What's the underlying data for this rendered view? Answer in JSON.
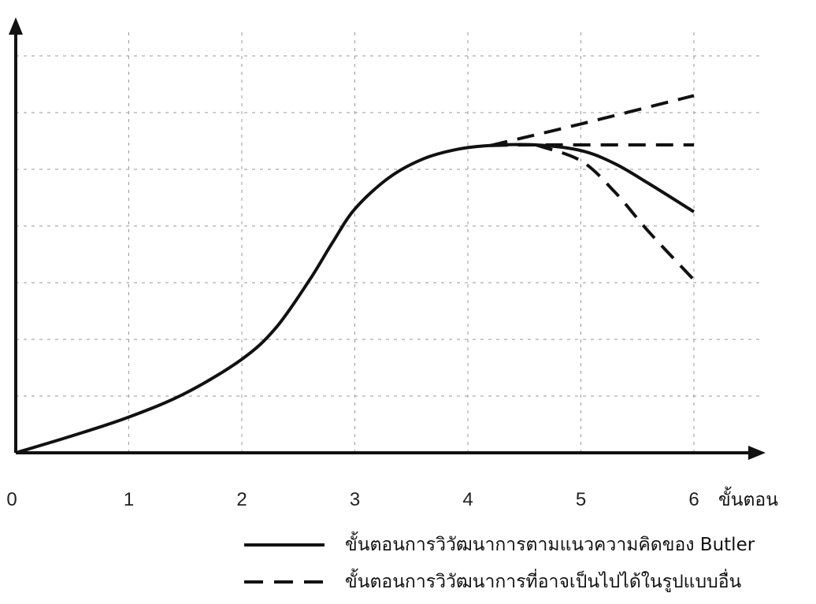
{
  "chart_data": {
    "type": "line",
    "x_unit_label": "ขั้นตอน",
    "x_ticks": [
      "0",
      "1",
      "2",
      "3",
      "4",
      "5",
      "6"
    ],
    "xlim": [
      0,
      6.6
    ],
    "ylim": [
      0,
      7.5
    ],
    "grid": true,
    "legend_position": "bottom-right",
    "series": [
      {
        "name": "ขั้นตอนการวิวัฒนาการตามแนวความคิดของ Butler",
        "style": "solid",
        "points": [
          [
            0,
            0
          ],
          [
            0.5,
            0.3
          ],
          [
            1,
            0.63
          ],
          [
            1.5,
            1.05
          ],
          [
            2,
            1.65
          ],
          [
            2.3,
            2.2
          ],
          [
            2.6,
            3.05
          ],
          [
            2.8,
            3.7
          ],
          [
            3,
            4.3
          ],
          [
            3.3,
            4.85
          ],
          [
            3.6,
            5.18
          ],
          [
            3.9,
            5.35
          ],
          [
            4.2,
            5.42
          ],
          [
            4.6,
            5.43
          ],
          [
            5,
            5.33
          ],
          [
            5.3,
            5.1
          ],
          [
            5.6,
            4.75
          ],
          [
            6,
            4.25
          ]
        ]
      },
      {
        "name": "ขั้นตอนการวิวัฒนาการที่อาจเป็นไปได้ในรูปแบบอื่น",
        "style": "dashed",
        "points": [
          [
            4.2,
            5.42
          ],
          [
            5,
            5.8
          ],
          [
            6,
            6.3
          ]
        ]
      },
      {
        "name": "ขั้นตอนการวิวัฒนาการที่อาจเป็นไปได้ในรูปแบบอื่น",
        "style": "dashed",
        "points": [
          [
            4.2,
            5.42
          ],
          [
            4.6,
            5.43
          ],
          [
            6,
            5.43
          ]
        ]
      },
      {
        "name": "ขั้นตอนการวิวัฒนาการที่อาจเป็นไปได้ในรูปแบบอื่น",
        "style": "dashed",
        "points": [
          [
            4.6,
            5.43
          ],
          [
            5,
            5.15
          ],
          [
            5.3,
            4.6
          ],
          [
            5.6,
            3.9
          ],
          [
            6,
            3.05
          ]
        ]
      }
    ]
  },
  "legend": [
    {
      "label": "ขั้นตอนการวิวัฒนาการตามแนวความคิดของ Butler",
      "style": "solid"
    },
    {
      "label": "ขั้นตอนการวิวัฒนาการที่อาจเป็นไปได้ในรูปแบบอื่น",
      "style": "dashed"
    }
  ]
}
